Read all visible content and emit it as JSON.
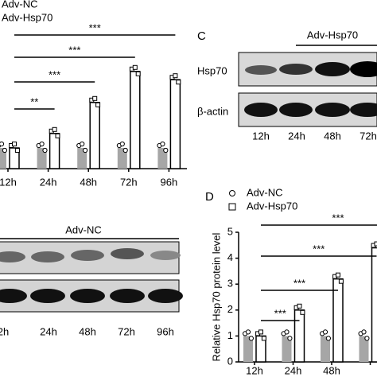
{
  "chart_data": [
    {
      "type": "bar",
      "categories": [
        "12h",
        "24h",
        "48h",
        "72h",
        "96h"
      ],
      "series": [
        {
          "name": "Adv-NC",
          "color": "#a6a6a6",
          "values": [
            1,
            1,
            1,
            1,
            1
          ]
        },
        {
          "name": "Adv-Hsp70",
          "color": "#ffffff",
          "values": [
            1,
            1.7,
            3.2,
            4.7,
            4.3
          ]
        }
      ],
      "ylim": [
        0,
        5
      ],
      "annotations": [
        "**",
        "***",
        "***",
        "***"
      ]
    },
    {
      "type": "bar",
      "panel": "D",
      "categories": [
        "12h",
        "24h",
        "48h",
        null
      ],
      "series": [
        {
          "name": "Adv-NC",
          "color": "#a6a6a6",
          "values": [
            1,
            1,
            1,
            1
          ]
        },
        {
          "name": "Adv-Hsp70",
          "color": "#ffffff",
          "values": [
            1,
            2,
            3.2,
            4.4
          ]
        }
      ],
      "ylabel": "Relative Hsp70 protein level",
      "ylim": [
        0,
        5
      ],
      "yticks": [
        0,
        1,
        2,
        3,
        4,
        5
      ],
      "annotations": [
        "***",
        "***",
        "***",
        "***"
      ]
    }
  ],
  "panel_c": {
    "label": "C",
    "title": "Adv-Hsp70",
    "rows": [
      "Hsp70",
      "β-actin"
    ],
    "lanes": [
      "12h",
      "24h",
      "48h",
      "72h"
    ]
  },
  "blot_nc": {
    "title": "Adv-NC",
    "lanes": [
      "2h",
      "24h",
      "48h",
      "72h",
      "96h"
    ]
  }
}
